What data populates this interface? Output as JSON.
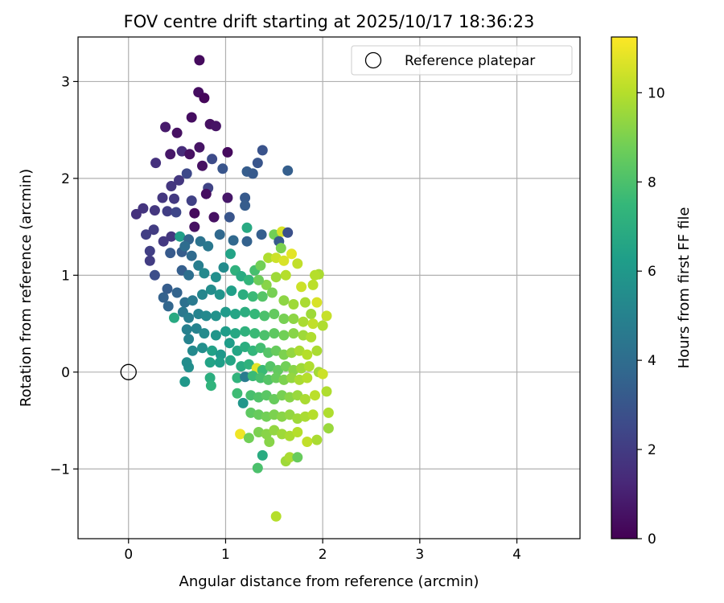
{
  "chart_data": {
    "type": "scatter",
    "title": "FOV centre drift starting at 2025/10/17 18:36:23",
    "xlabel": "Angular distance from reference (arcmin)",
    "ylabel": "Rotation from reference (arcmin)",
    "xlim": [
      -0.52,
      4.65
    ],
    "ylim": [
      -1.72,
      3.46
    ],
    "x_ticks": [
      0,
      1,
      2,
      3,
      4
    ],
    "y_ticks": [
      -1,
      0,
      1,
      2,
      3
    ],
    "x_tick_labels": [
      "0",
      "1",
      "2",
      "3",
      "4"
    ],
    "y_tick_labels": [
      "−1",
      "0",
      "1",
      "2",
      "3"
    ],
    "grid": true,
    "legend": {
      "position": "top-right",
      "entries": [
        "Reference platepar"
      ]
    },
    "reference_point": {
      "x": 0,
      "y": 0,
      "label": "Reference platepar"
    },
    "colorbar": {
      "label": "Hours from first FF file",
      "range": [
        0,
        11.25
      ],
      "ticks": [
        0,
        2,
        4,
        6,
        8,
        10
      ],
      "tick_labels": [
        "0",
        "2",
        "4",
        "6",
        "8",
        "10"
      ],
      "colormap": [
        "#440154",
        "#482878",
        "#3e4989",
        "#31688e",
        "#26828e",
        "#1f9e89",
        "#35b779",
        "#6ece58",
        "#b5de2b",
        "#fde725"
      ]
    },
    "series": [
      {
        "name": "drift",
        "points": [
          [
            0.73,
            3.22,
            0.3
          ],
          [
            0.72,
            2.89,
            0.4
          ],
          [
            0.78,
            2.83,
            0.2
          ],
          [
            0.84,
            2.56,
            0.5
          ],
          [
            0.9,
            2.54,
            0.6
          ],
          [
            0.5,
            2.47,
            0.5
          ],
          [
            0.38,
            2.53,
            0.8
          ],
          [
            0.65,
            2.63,
            0.4
          ],
          [
            1.02,
            2.27,
            0.3
          ],
          [
            0.73,
            2.32,
            0.6
          ],
          [
            0.55,
            2.28,
            1.4
          ],
          [
            0.63,
            2.25,
            0.5
          ],
          [
            0.43,
            2.25,
            0.7
          ],
          [
            0.28,
            2.16,
            1.6
          ],
          [
            0.86,
            2.2,
            2.6
          ],
          [
            0.97,
            2.1,
            3.0
          ],
          [
            1.38,
            2.29,
            2.9
          ],
          [
            1.33,
            2.16,
            3.0
          ],
          [
            1.22,
            2.07,
            3.3
          ],
          [
            1.28,
            2.05,
            3.2
          ],
          [
            1.64,
            2.08,
            3.4
          ],
          [
            0.76,
            2.13,
            0.5
          ],
          [
            0.6,
            2.05,
            2.5
          ],
          [
            0.52,
            1.98,
            1.8
          ],
          [
            0.44,
            1.92,
            1.8
          ],
          [
            0.35,
            1.8,
            1.8
          ],
          [
            0.47,
            1.79,
            1.9
          ],
          [
            0.65,
            1.77,
            2.2
          ],
          [
            0.82,
            1.9,
            2.3
          ],
          [
            0.8,
            1.84,
            0.4
          ],
          [
            1.02,
            1.8,
            0.7
          ],
          [
            1.2,
            1.8,
            3.2
          ],
          [
            0.15,
            1.69,
            1.7
          ],
          [
            0.08,
            1.63,
            1.6
          ],
          [
            0.27,
            1.67,
            1.8
          ],
          [
            0.4,
            1.66,
            2.1
          ],
          [
            0.49,
            1.65,
            2.4
          ],
          [
            0.68,
            1.64,
            0.3
          ],
          [
            0.68,
            1.5,
            0.5
          ],
          [
            0.88,
            1.6,
            0.5
          ],
          [
            1.04,
            1.6,
            3.0
          ],
          [
            1.2,
            1.72,
            3.3
          ],
          [
            0.18,
            1.42,
            2.1
          ],
          [
            0.26,
            1.47,
            2.0
          ],
          [
            0.36,
            1.35,
            1.9
          ],
          [
            0.44,
            1.4,
            1.8
          ],
          [
            0.53,
            1.4,
            6.3
          ],
          [
            0.62,
            1.37,
            3.6
          ],
          [
            0.22,
            1.25,
            2.1
          ],
          [
            0.22,
            1.15,
            2.0
          ],
          [
            0.27,
            1.0,
            2.7
          ],
          [
            0.43,
            1.23,
            3.2
          ],
          [
            0.55,
            1.24,
            3.3
          ],
          [
            0.58,
            1.3,
            4.0
          ],
          [
            0.65,
            1.2,
            3.9
          ],
          [
            0.74,
            1.35,
            4.3
          ],
          [
            0.82,
            1.3,
            4.5
          ],
          [
            0.94,
            1.42,
            3.8
          ],
          [
            1.08,
            1.36,
            3.8
          ],
          [
            1.22,
            1.35,
            3.5
          ],
          [
            1.37,
            1.42,
            3.4
          ],
          [
            1.22,
            1.49,
            6.8
          ],
          [
            1.5,
            1.42,
            8.8
          ],
          [
            1.58,
            1.45,
            10.6
          ],
          [
            1.64,
            1.44,
            2.8
          ],
          [
            1.55,
            1.35,
            3.2
          ],
          [
            1.57,
            1.28,
            9.0
          ],
          [
            0.55,
            1.05,
            3.4
          ],
          [
            0.62,
            1.0,
            4.1
          ],
          [
            0.72,
            1.1,
            4.8
          ],
          [
            0.78,
            1.02,
            5.3
          ],
          [
            0.9,
            0.98,
            5.6
          ],
          [
            0.98,
            1.08,
            5.4
          ],
          [
            1.05,
            1.22,
            6.5
          ],
          [
            1.1,
            1.05,
            7.2
          ],
          [
            1.16,
            0.99,
            6.9
          ],
          [
            1.24,
            0.95,
            7.4
          ],
          [
            1.3,
            1.05,
            7.9
          ],
          [
            1.36,
            1.1,
            8.8
          ],
          [
            1.44,
            1.18,
            9.9
          ],
          [
            1.52,
            1.18,
            10.4
          ],
          [
            1.6,
            1.15,
            10.6
          ],
          [
            1.68,
            1.22,
            10.8
          ],
          [
            1.74,
            1.12,
            10.2
          ],
          [
            1.62,
            1.0,
            10.0
          ],
          [
            1.52,
            0.98,
            9.6
          ],
          [
            1.42,
            0.9,
            9.2
          ],
          [
            1.34,
            0.95,
            8.7
          ],
          [
            1.96,
            1.01,
            9.8
          ],
          [
            1.92,
            1.0,
            10.0
          ],
          [
            1.78,
            0.88,
            10.4
          ],
          [
            1.9,
            0.9,
            10.1
          ],
          [
            0.4,
            0.86,
            3.3
          ],
          [
            0.5,
            0.82,
            3.6
          ],
          [
            0.58,
            0.72,
            4.2
          ],
          [
            0.66,
            0.74,
            4.6
          ],
          [
            0.76,
            0.8,
            5.2
          ],
          [
            0.85,
            0.85,
            5.5
          ],
          [
            0.94,
            0.8,
            5.8
          ],
          [
            1.06,
            0.84,
            6.3
          ],
          [
            1.18,
            0.8,
            7.0
          ],
          [
            1.28,
            0.78,
            7.6
          ],
          [
            1.38,
            0.78,
            8.2
          ],
          [
            1.48,
            0.82,
            8.9
          ],
          [
            1.6,
            0.74,
            9.3
          ],
          [
            1.7,
            0.7,
            9.6
          ],
          [
            1.82,
            0.72,
            9.8
          ],
          [
            1.94,
            0.72,
            10.6
          ],
          [
            1.88,
            0.6,
            9.6
          ],
          [
            2.04,
            0.58,
            10.3
          ],
          [
            0.36,
            0.77,
            3.5
          ],
          [
            0.41,
            0.68,
            3.7
          ],
          [
            0.47,
            0.56,
            6.8
          ],
          [
            0.56,
            0.62,
            4.5
          ],
          [
            0.62,
            0.56,
            4.8
          ],
          [
            0.72,
            0.6,
            5.1
          ],
          [
            0.8,
            0.58,
            5.3
          ],
          [
            0.9,
            0.58,
            5.7
          ],
          [
            1.0,
            0.62,
            6.1
          ],
          [
            1.1,
            0.6,
            6.6
          ],
          [
            1.2,
            0.62,
            7.0
          ],
          [
            1.3,
            0.6,
            7.5
          ],
          [
            1.4,
            0.58,
            8.0
          ],
          [
            1.5,
            0.6,
            8.5
          ],
          [
            1.6,
            0.55,
            8.9
          ],
          [
            1.7,
            0.55,
            9.3
          ],
          [
            1.8,
            0.52,
            9.8
          ],
          [
            1.9,
            0.5,
            10.2
          ],
          [
            2.0,
            0.48,
            9.9
          ],
          [
            0.6,
            0.44,
            4.9
          ],
          [
            0.7,
            0.45,
            5.0
          ],
          [
            0.78,
            0.4,
            5.4
          ],
          [
            0.9,
            0.38,
            5.9
          ],
          [
            1.0,
            0.42,
            6.2
          ],
          [
            1.1,
            0.4,
            6.7
          ],
          [
            1.2,
            0.42,
            7.2
          ],
          [
            1.3,
            0.4,
            7.6
          ],
          [
            1.4,
            0.38,
            8.0
          ],
          [
            1.5,
            0.4,
            8.4
          ],
          [
            1.6,
            0.38,
            8.8
          ],
          [
            1.7,
            0.4,
            9.2
          ],
          [
            1.8,
            0.38,
            9.6
          ],
          [
            1.88,
            0.36,
            9.9
          ],
          [
            0.62,
            0.34,
            5.0
          ],
          [
            0.66,
            0.22,
            5.3
          ],
          [
            0.76,
            0.25,
            5.6
          ],
          [
            0.86,
            0.22,
            6.4
          ],
          [
            0.95,
            0.18,
            6.0
          ],
          [
            1.04,
            0.3,
            6.2
          ],
          [
            1.12,
            0.22,
            6.6
          ],
          [
            1.2,
            0.26,
            7.0
          ],
          [
            1.28,
            0.22,
            7.4
          ],
          [
            1.36,
            0.25,
            7.8
          ],
          [
            1.44,
            0.2,
            8.2
          ],
          [
            1.52,
            0.22,
            8.6
          ],
          [
            1.6,
            0.18,
            9.0
          ],
          [
            1.68,
            0.2,
            9.4
          ],
          [
            1.76,
            0.22,
            9.8
          ],
          [
            1.84,
            0.18,
            10.0
          ],
          [
            1.94,
            0.22,
            9.8
          ],
          [
            0.62,
            0.05,
            5.6
          ],
          [
            0.6,
            0.1,
            5.5
          ],
          [
            0.84,
            0.1,
            6.5
          ],
          [
            0.94,
            0.1,
            6.3
          ],
          [
            1.05,
            0.12,
            6.6
          ],
          [
            1.16,
            0.06,
            6.9
          ],
          [
            1.24,
            0.08,
            7.2
          ],
          [
            1.32,
            0.04,
            10.8
          ],
          [
            1.38,
            0.02,
            7.6
          ],
          [
            1.46,
            0.06,
            8.2
          ],
          [
            1.54,
            0.02,
            8.5
          ],
          [
            1.62,
            0.06,
            8.8
          ],
          [
            1.7,
            0.02,
            9.2
          ],
          [
            1.78,
            0.04,
            9.6
          ],
          [
            1.86,
            0.06,
            9.9
          ],
          [
            1.96,
            0.0,
            9.7
          ],
          [
            2.0,
            -0.02,
            10.4
          ],
          [
            0.58,
            -0.1,
            6.0
          ],
          [
            0.84,
            -0.06,
            7.0
          ],
          [
            0.85,
            -0.14,
            7.3
          ],
          [
            1.12,
            -0.06,
            7.3
          ],
          [
            1.2,
            -0.05,
            4.7
          ],
          [
            1.28,
            -0.04,
            7.6
          ],
          [
            1.36,
            -0.06,
            7.9
          ],
          [
            1.44,
            -0.08,
            8.2
          ],
          [
            1.52,
            -0.06,
            8.6
          ],
          [
            1.6,
            -0.08,
            9.0
          ],
          [
            1.68,
            -0.06,
            9.4
          ],
          [
            1.76,
            -0.08,
            9.8
          ],
          [
            1.84,
            -0.06,
            10.0
          ],
          [
            1.12,
            -0.22,
            7.7
          ],
          [
            1.18,
            -0.32,
            5.9
          ],
          [
            1.26,
            -0.24,
            7.9
          ],
          [
            1.34,
            -0.26,
            8.1
          ],
          [
            1.42,
            -0.24,
            8.3
          ],
          [
            1.5,
            -0.28,
            8.6
          ],
          [
            1.58,
            -0.24,
            8.9
          ],
          [
            1.66,
            -0.26,
            9.2
          ],
          [
            1.74,
            -0.24,
            9.5
          ],
          [
            1.82,
            -0.28,
            9.8
          ],
          [
            1.92,
            -0.24,
            10.1
          ],
          [
            2.04,
            -0.2,
            9.9
          ],
          [
            1.26,
            -0.42,
            8.4
          ],
          [
            1.34,
            -0.44,
            8.6
          ],
          [
            1.42,
            -0.46,
            8.8
          ],
          [
            1.5,
            -0.44,
            9.0
          ],
          [
            1.58,
            -0.46,
            9.2
          ],
          [
            1.66,
            -0.44,
            9.4
          ],
          [
            1.74,
            -0.48,
            9.6
          ],
          [
            1.82,
            -0.46,
            9.8
          ],
          [
            1.9,
            -0.44,
            10.0
          ],
          [
            2.06,
            -0.42,
            9.9
          ],
          [
            1.15,
            -0.64,
            11.0
          ],
          [
            1.24,
            -0.68,
            8.8
          ],
          [
            1.34,
            -0.62,
            9.0
          ],
          [
            1.42,
            -0.64,
            9.2
          ],
          [
            1.5,
            -0.6,
            9.4
          ],
          [
            1.58,
            -0.64,
            9.6
          ],
          [
            1.66,
            -0.66,
            9.8
          ],
          [
            1.74,
            -0.62,
            10.0
          ],
          [
            1.84,
            -0.72,
            10.2
          ],
          [
            1.94,
            -0.7,
            9.8
          ],
          [
            2.06,
            -0.58,
            9.5
          ],
          [
            1.45,
            -0.72,
            9.2
          ],
          [
            1.62,
            -0.92,
            9.6
          ],
          [
            1.66,
            -0.88,
            9.8
          ],
          [
            1.38,
            -0.86,
            6.9
          ],
          [
            1.33,
            -0.99,
            8.0
          ],
          [
            1.74,
            -0.88,
            8.6
          ],
          [
            1.52,
            -1.49,
            10.0
          ]
        ]
      }
    ]
  }
}
